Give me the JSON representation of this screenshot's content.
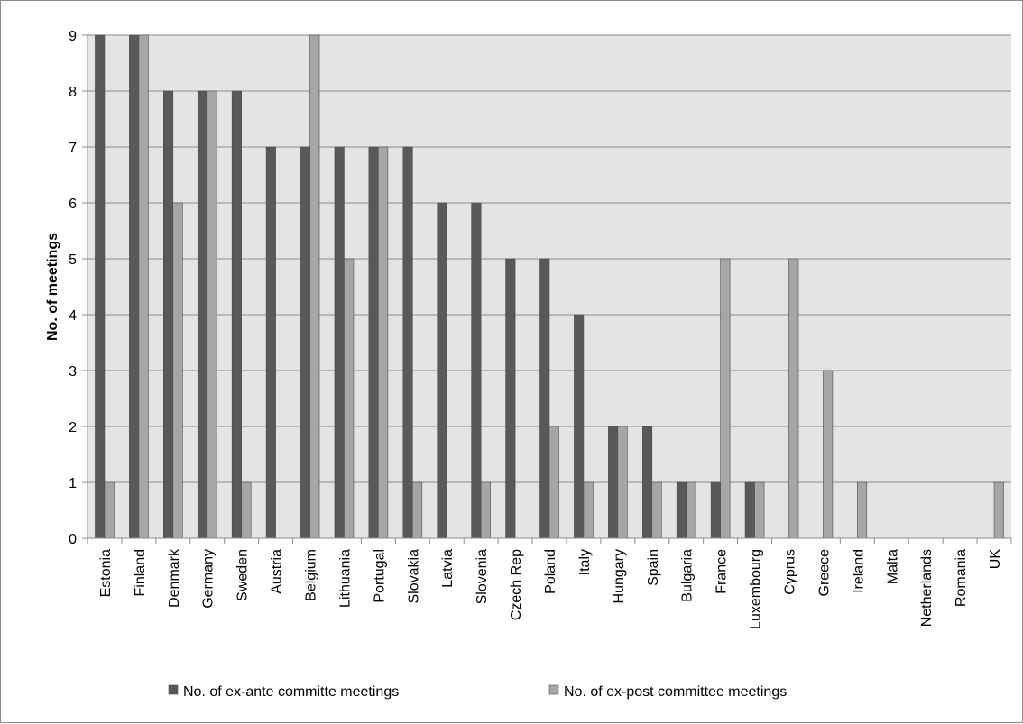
{
  "chart_data": {
    "type": "bar",
    "title": "",
    "xlabel": "",
    "ylabel": "No. of meetings",
    "ylim": [
      0,
      9
    ],
    "yticks": [
      0,
      1,
      2,
      3,
      4,
      5,
      6,
      7,
      8,
      9
    ],
    "grid": true,
    "legend_position": "bottom",
    "categories": [
      "Estonia",
      "Finland",
      "Denmark",
      "Germany",
      "Sweden",
      "Austria",
      "Belgium",
      "Lithuania",
      "Portugal",
      "Slovakia",
      "Latvia",
      "Slovenia",
      "Czech Rep",
      "Poland",
      "Italy",
      "Hungary",
      "Spain",
      "Bulgaria",
      "France",
      "Luxembourg",
      "Cyprus",
      "Greece",
      "Ireland",
      "Malta",
      "Netherlands",
      "Romania",
      "UK"
    ],
    "series": [
      {
        "name": "No. of ex-ante committe meetings",
        "color": "#595959",
        "values": [
          9,
          9,
          8,
          8,
          8,
          7,
          7,
          7,
          7,
          7,
          6,
          6,
          5,
          5,
          4,
          2,
          2,
          1,
          1,
          1,
          0,
          0,
          0,
          0,
          0,
          0,
          0
        ]
      },
      {
        "name": "No. of ex-post committee meetings",
        "color": "#a6a6a6",
        "values": [
          1,
          9,
          6,
          8,
          1,
          0,
          9,
          5,
          7,
          1,
          0,
          1,
          0,
          2,
          1,
          2,
          1,
          1,
          5,
          1,
          5,
          3,
          1,
          0,
          0,
          0,
          1
        ]
      }
    ]
  }
}
